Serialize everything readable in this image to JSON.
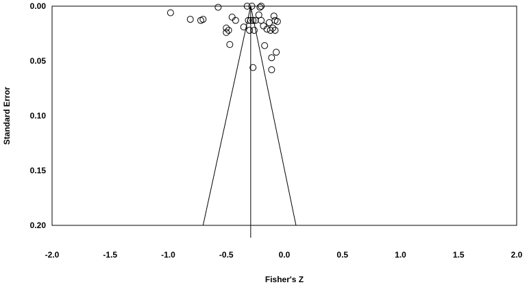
{
  "chart_data": {
    "type": "scatter",
    "subtype": "funnel-plot",
    "xlabel": "Fisher's Z",
    "ylabel": "Standard Error",
    "xlim": [
      -2.0,
      2.0
    ],
    "ylim": [
      0.0,
      0.2
    ],
    "y_inverted": true,
    "x_ticks": [
      "-2.0",
      "-1.5",
      "-1.0",
      "-0.5",
      "0.0",
      "0.5",
      "1.0",
      "1.5",
      "2.0"
    ],
    "y_ticks": [
      "0.00",
      "0.05",
      "0.10",
      "0.15",
      "0.20"
    ],
    "grid": false,
    "summary_effect": -0.29,
    "funnel": {
      "apex": [
        -0.29,
        0.0
      ],
      "left_base": [
        -0.7,
        0.2
      ],
      "right_base": [
        0.1,
        0.2
      ]
    },
    "marker": "open-circle",
    "points": [
      {
        "x": -0.98,
        "y": 0.006
      },
      {
        "x": -0.81,
        "y": 0.012
      },
      {
        "x": -0.72,
        "y": 0.013
      },
      {
        "x": -0.7,
        "y": 0.012
      },
      {
        "x": -0.57,
        "y": 0.001
      },
      {
        "x": -0.5,
        "y": 0.02
      },
      {
        "x": -0.5,
        "y": 0.024
      },
      {
        "x": -0.48,
        "y": 0.022
      },
      {
        "x": -0.45,
        "y": 0.01
      },
      {
        "x": -0.42,
        "y": 0.013
      },
      {
        "x": -0.47,
        "y": 0.035
      },
      {
        "x": -0.35,
        "y": 0.019
      },
      {
        "x": -0.32,
        "y": 0.0
      },
      {
        "x": -0.31,
        "y": 0.013
      },
      {
        "x": -0.29,
        "y": 0.013
      },
      {
        "x": -0.28,
        "y": 0.0
      },
      {
        "x": -0.27,
        "y": 0.013
      },
      {
        "x": -0.26,
        "y": 0.022
      },
      {
        "x": -0.25,
        "y": 0.013
      },
      {
        "x": -0.3,
        "y": 0.022
      },
      {
        "x": -0.22,
        "y": 0.008
      },
      {
        "x": -0.21,
        "y": 0.001
      },
      {
        "x": -0.2,
        "y": 0.013
      },
      {
        "x": -0.18,
        "y": 0.018
      },
      {
        "x": -0.2,
        "y": 0.0
      },
      {
        "x": -0.17,
        "y": 0.036
      },
      {
        "x": -0.15,
        "y": 0.021
      },
      {
        "x": -0.13,
        "y": 0.015
      },
      {
        "x": -0.12,
        "y": 0.022
      },
      {
        "x": -0.1,
        "y": 0.02
      },
      {
        "x": -0.09,
        "y": 0.009
      },
      {
        "x": -0.08,
        "y": 0.022
      },
      {
        "x": -0.08,
        "y": 0.013
      },
      {
        "x": -0.06,
        "y": 0.014
      },
      {
        "x": -0.11,
        "y": 0.047
      },
      {
        "x": -0.07,
        "y": 0.042
      },
      {
        "x": -0.27,
        "y": 0.056
      },
      {
        "x": -0.11,
        "y": 0.058
      }
    ]
  }
}
